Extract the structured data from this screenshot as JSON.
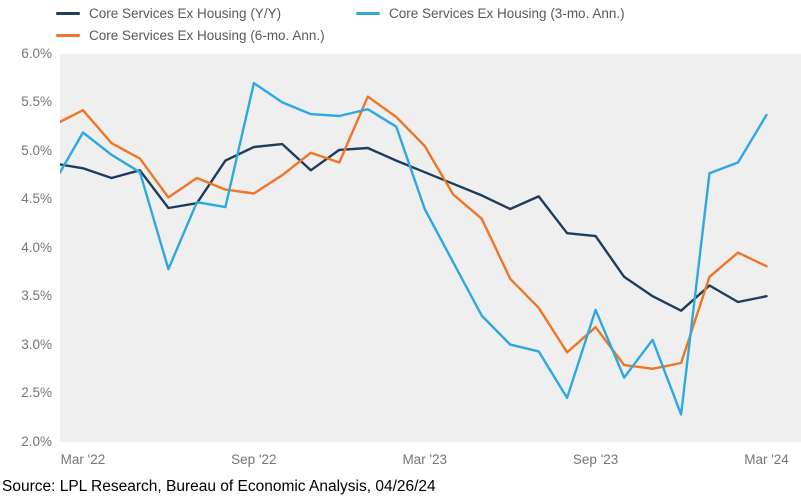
{
  "chart_data": {
    "type": "line",
    "x": [
      "Feb '22",
      "Mar '22",
      "Apr '22",
      "May '22",
      "Jun '22",
      "Jul '22",
      "Aug '22",
      "Sep '22",
      "Oct '22",
      "Nov '22",
      "Dec '22",
      "Jan '23",
      "Feb '23",
      "Mar '23",
      "Apr '23",
      "May '23",
      "Jun '23",
      "Jul '23",
      "Aug '23",
      "Sep '23",
      "Oct '23",
      "Nov '23",
      "Dec '23",
      "Jan '24",
      "Feb '24",
      "Mar '24"
    ],
    "series": [
      {
        "name": "Core Services Ex Housing (Y/Y)",
        "color": "#1e3d5c",
        "values": [
          4.87,
          4.82,
          4.72,
          4.8,
          4.41,
          4.46,
          4.9,
          5.04,
          5.07,
          4.8,
          5.01,
          5.03,
          4.9,
          4.78,
          4.66,
          4.54,
          4.4,
          4.53,
          4.15,
          4.12,
          3.7,
          3.5,
          3.35,
          3.61,
          3.44,
          3.5
        ]
      },
      {
        "name": "Core Services Ex Housing (3-mo. Ann.)",
        "color": "#2da9e1",
        "values": [
          4.68,
          5.19,
          4.96,
          4.78,
          3.78,
          4.47,
          4.42,
          5.7,
          5.5,
          5.38,
          5.36,
          5.43,
          5.25,
          4.4,
          3.85,
          3.3,
          3.0,
          2.93,
          2.45,
          3.36,
          2.66,
          3.05,
          2.28,
          4.77,
          4.88,
          5.37
        ]
      },
      {
        "name": "Core Services Ex Housing (6-mo. Ann.)",
        "color": "#ee7624",
        "values": [
          5.27,
          5.42,
          5.08,
          4.92,
          4.52,
          4.72,
          4.6,
          4.56,
          4.75,
          4.98,
          4.88,
          5.56,
          5.35,
          5.05,
          4.55,
          4.3,
          3.68,
          3.38,
          2.92,
          3.18,
          2.79,
          2.75,
          2.81,
          3.7,
          3.95,
          3.81
        ]
      }
    ],
    "ylim": [
      2.0,
      6.0
    ],
    "y_tick_step": 0.5,
    "y_tick_labels": [
      "6.0%",
      "5.5%",
      "5.0%",
      "4.5%",
      "4.0%",
      "3.5%",
      "3.0%",
      "2.5%",
      "2.0%"
    ],
    "x_tick_labels": [
      "Mar '22",
      "Sep '22",
      "Mar '23",
      "Sep '23",
      "Mar '24"
    ],
    "x_tick_month_indices": [
      1,
      7,
      13,
      19,
      25
    ],
    "grid": "off",
    "legend_position": "top",
    "plot_background": "#efefef",
    "title": "",
    "xlabel": "",
    "ylabel": ""
  },
  "footer": {
    "source_text": "Source: LPL Research, Bureau of Economic Analysis, 04/26/24"
  }
}
